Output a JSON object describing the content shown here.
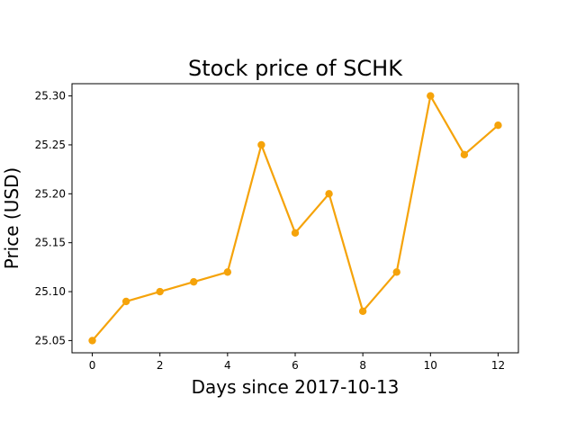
{
  "chart_data": {
    "type": "line",
    "title": "Stock price of SCHK",
    "xlabel": "Days since 2017-10-13",
    "ylabel": "Price (USD)",
    "xlim": [
      -0.6,
      12.6
    ],
    "ylim": [
      25.0375,
      25.3125
    ],
    "xticks": [
      0,
      2,
      4,
      6,
      8,
      10,
      12
    ],
    "yticks": [
      25.05,
      25.1,
      25.15,
      25.2,
      25.25,
      25.3
    ],
    "xtick_labels": [
      "0",
      "2",
      "4",
      "6",
      "8",
      "10",
      "12"
    ],
    "ytick_labels": [
      "25.05",
      "25.10",
      "25.15",
      "25.20",
      "25.25",
      "25.30"
    ],
    "grid": false,
    "series": [
      {
        "color": "#f5a30a",
        "x": [
          0,
          1,
          2,
          3,
          4,
          5,
          6,
          7,
          8,
          9,
          10,
          11,
          12
        ],
        "y": [
          25.05,
          25.09,
          25.1,
          25.11,
          25.12,
          25.25,
          25.16,
          25.2,
          25.08,
          25.12,
          25.3,
          25.24,
          25.27
        ]
      }
    ]
  }
}
